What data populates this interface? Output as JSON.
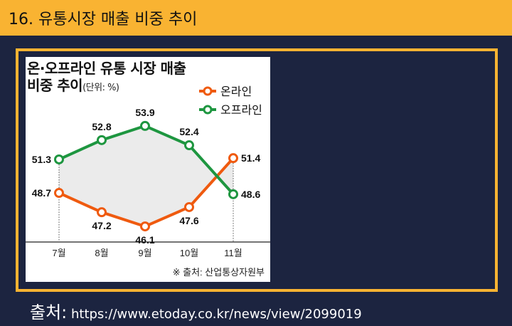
{
  "header": {
    "title": "16. 유통시장 매출 비중 추이"
  },
  "chart": {
    "title_line1": "온·오프라인 유통 시장 매출",
    "title_line2": "비중 추이",
    "unit": "(단위: %)",
    "source_note": "※ 출처: 산업통상자원부"
  },
  "source": {
    "label": "출처:",
    "url": "https://www.etoday.co.kr/news/view/2099019"
  },
  "chart_data": {
    "type": "line",
    "categories": [
      "7월",
      "8월",
      "9월",
      "10월",
      "11월"
    ],
    "series": [
      {
        "name": "온라인",
        "values": [
          48.7,
          47.2,
          46.1,
          47.6,
          51.4
        ],
        "color": "#ef5a0f"
      },
      {
        "name": "오프라인",
        "values": [
          51.3,
          52.8,
          53.9,
          52.4,
          48.6
        ],
        "color": "#1e9640"
      }
    ],
    "title": "온·오프라인 유통 시장 매출 비중 추이",
    "ylabel": "",
    "xlabel": "",
    "legend_position": "top-right",
    "grid": false
  }
}
